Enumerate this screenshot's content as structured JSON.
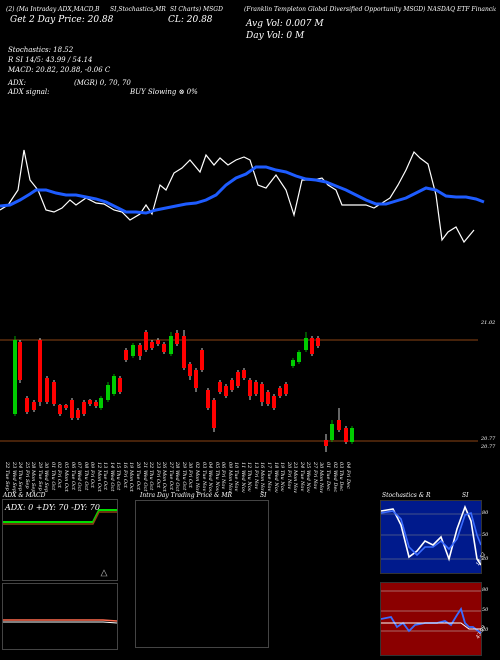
{
  "header": {
    "line1_left": "(2) (Ma Intraday ADX,MACD,B",
    "line1_mid1": "SI,Stochastics,MR",
    "line1_mid2": "SI Charts) MSGD",
    "line1_right": "(Franklin Templeton Global Diversified Opportunity MSGD) NASDAQ ETF Financials",
    "line2_left": "Get 2 Day Price: 20.88",
    "line2_mid": "CL: 20.88",
    "line2_right": "Avg Vol: 0.007 M",
    "line3_right": "Day Vol: 0   M",
    "stoch_line": "Stochastics: 18.52",
    "rsi_line": "R            SI 14/5: 43.99 / 54.14",
    "macd_line": "MACD: 20.82, 20.88, -0.06  C",
    "adx_line": "ADX:",
    "mgr_line": "(MGR) 0, 70,  70",
    "adx_signal": "ADX signal:",
    "buy_signal": "BUY Slowing ⊗ 0%"
  },
  "price_axis": {
    "top_label": "21.02",
    "low_label1": "20.77",
    "low_label2": "20.77"
  },
  "dates": [
    "22 Tue Sep",
    "23 Wed Sep",
    "24 Thu Sep",
    "25 Fri Sep",
    "28 Mon Sep",
    "29 Tue Sep",
    "30 Wed Sep",
    "01 Thu Oct",
    "02 Fri Oct",
    "05 Mon Oct",
    "06 Tue Oct",
    "07 Wed Oct",
    "08 Thu Oct",
    "09 Fri Oct",
    "12 Mon Oct",
    "13 Tue Oct",
    "14 Wed Oct",
    "15 Thu Oct",
    "16 Fri Oct",
    "19 Mon Oct",
    "20 Tue Oct",
    "21 Wed Oct",
    "22 Thu Oct",
    "23 Fri Oct",
    "26 Mon Oct",
    "27 Tue Oct",
    "28 Wed Oct",
    "29 Thu Oct",
    "30 Fri Oct",
    "02 Mon Nov",
    "03 Tue Nov",
    "04 Wed Nov",
    "05 Thu Nov",
    "06 Fri Nov",
    "09 Mon Nov",
    "10 Tue Nov",
    "11 Wed Nov",
    "12 Thu Nov",
    "13 Fri Nov",
    "16 Mon Nov",
    "17 Tue Nov",
    "18 Wed Nov",
    "19 Thu Nov",
    "20 Fri Nov",
    "23 Mon Nov",
    "24 Tue Nov",
    "25 Wed Nov",
    "27 Fri Nov",
    "30 Mon Nov",
    "01 Tue Dec",
    "02 Wed Dec",
    "03 Thu Dec",
    "04 Fri Dec"
  ],
  "panels": {
    "adx_title": "ADX  & MACD",
    "adx_readout": "ADX: 0  +DY: 70  -DY: 70",
    "intra_title": "Intra  Day Trading Price  & MR",
    "intra_si": "SI",
    "stoch_title": "Stochastics & R",
    "stoch_si": "SI",
    "stoch_ticks": [
      "80",
      "50",
      "20"
    ],
    "rsi_ticks": [
      "80",
      "50",
      "20"
    ],
    "stoch_value": "18.52",
    "rsi_value": "43.99"
  },
  "colors": {
    "bull": "#00cc00",
    "bear": "#ff0000",
    "ma": "#1e5cff",
    "brown": "#8b4513",
    "stoch_bg": "#001a8c",
    "rsi_bg": "#8b0000"
  }
}
